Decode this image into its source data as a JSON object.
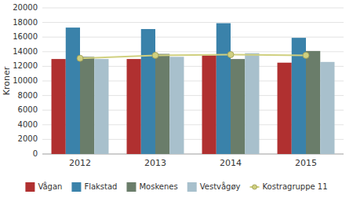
{
  "chart_data": {
    "type": "bar",
    "y_label": "Kroner",
    "categories": [
      "2012",
      "2013",
      "2014",
      "2015"
    ],
    "series": [
      {
        "name": "Vågan",
        "color": "#b03030",
        "values": [
          13000,
          13000,
          13500,
          12500
        ]
      },
      {
        "name": "Flakstad",
        "color": "#3a82aa",
        "values": [
          17300,
          17100,
          17900,
          15900
        ]
      },
      {
        "name": "Moskenes",
        "color": "#6a7d6a",
        "values": [
          13300,
          13700,
          13000,
          14100
        ]
      },
      {
        "name": "Vestvågøy",
        "color": "#a8c0cc",
        "values": [
          13000,
          13300,
          13800,
          12600
        ]
      },
      {
        "name": "Kostragruppe 11",
        "type": "line",
        "marker": "circle",
        "color": "#d0d080",
        "values": [
          13100,
          13500,
          13600,
          13500
        ]
      }
    ],
    "ylim": [
      0,
      20000
    ],
    "yticks": [
      0,
      2000,
      4000,
      6000,
      8000,
      10000,
      12000,
      14000,
      16000,
      18000,
      20000
    ],
    "grid": true,
    "legend": "bottom"
  }
}
